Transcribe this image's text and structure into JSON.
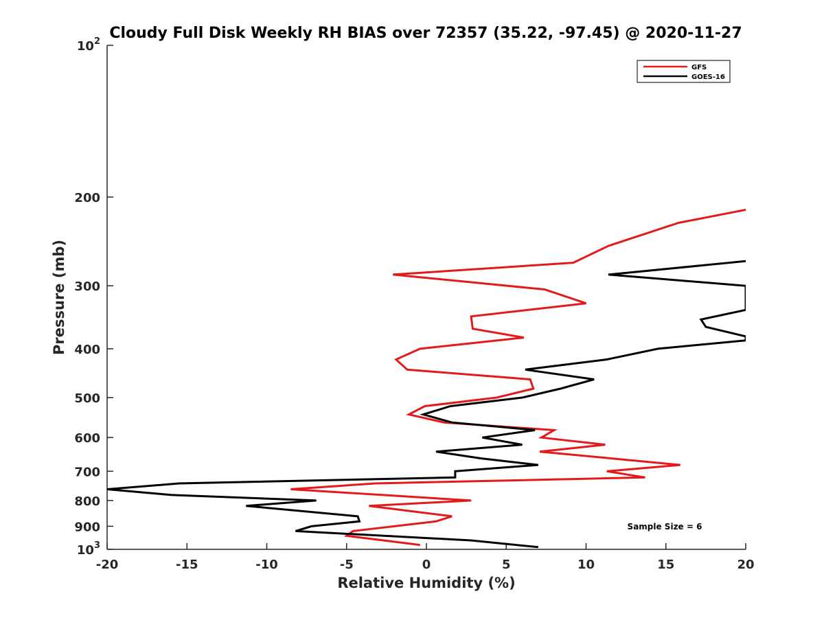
{
  "chart_data": {
    "type": "line",
    "title": "Cloudy Full Disk Weekly RH BIAS over 72357 (35.22, -97.45) @ 2020-11-27",
    "xlabel": "Relative Humidity (%)",
    "ylabel": "Pressure (mb)",
    "xlim": [
      -20,
      20
    ],
    "ylim": [
      100,
      1000
    ],
    "y_scale": "log",
    "y_reversed": true,
    "grid": false,
    "legend_position": "top-right",
    "x_ticks": [
      "-20",
      "-15",
      "-10",
      "-5",
      "0",
      "5",
      "10",
      "15",
      "20"
    ],
    "y_ticks": [
      {
        "base": "10",
        "exp": "2"
      },
      {
        "base": "200",
        "exp": ""
      },
      {
        "base": "300",
        "exp": ""
      },
      {
        "base": "400",
        "exp": ""
      },
      {
        "base": "500",
        "exp": ""
      },
      {
        "base": "600",
        "exp": ""
      },
      {
        "base": "700",
        "exp": ""
      },
      {
        "base": "800",
        "exp": ""
      },
      {
        "base": "900",
        "exp": ""
      },
      {
        "base": "10",
        "exp": "3"
      }
    ],
    "annotation": "Sample Size = 6",
    "series": [
      {
        "name": "GFS",
        "color": "#e31a1c",
        "points": [
          {
            "x": 20.0,
            "y": 212
          },
          {
            "x": 15.8,
            "y": 225
          },
          {
            "x": 11.4,
            "y": 250
          },
          {
            "x": 9.2,
            "y": 270
          },
          {
            "x": -2.1,
            "y": 285
          },
          {
            "x": 7.4,
            "y": 305
          },
          {
            "x": 10.0,
            "y": 325
          },
          {
            "x": 2.8,
            "y": 345
          },
          {
            "x": 2.9,
            "y": 365
          },
          {
            "x": 6.1,
            "y": 380
          },
          {
            "x": -0.4,
            "y": 400
          },
          {
            "x": -1.9,
            "y": 420
          },
          {
            "x": -1.2,
            "y": 440
          },
          {
            "x": 6.5,
            "y": 460
          },
          {
            "x": 6.7,
            "y": 480
          },
          {
            "x": 4.4,
            "y": 500
          },
          {
            "x": -0.1,
            "y": 520
          },
          {
            "x": -1.1,
            "y": 540
          },
          {
            "x": 1.1,
            "y": 560
          },
          {
            "x": 8.0,
            "y": 580
          },
          {
            "x": 7.2,
            "y": 600
          },
          {
            "x": 11.2,
            "y": 620
          },
          {
            "x": 7.1,
            "y": 640
          },
          {
            "x": 15.9,
            "y": 680
          },
          {
            "x": 11.3,
            "y": 700
          },
          {
            "x": 13.7,
            "y": 720
          },
          {
            "x": -3.2,
            "y": 740
          },
          {
            "x": -8.5,
            "y": 760
          },
          {
            "x": 2.8,
            "y": 800
          },
          {
            "x": -3.6,
            "y": 820
          },
          {
            "x": 1.6,
            "y": 860
          },
          {
            "x": 0.6,
            "y": 880
          },
          {
            "x": -4.6,
            "y": 920
          },
          {
            "x": -5.0,
            "y": 940
          },
          {
            "x": -0.4,
            "y": 980
          }
        ]
      },
      {
        "name": "GOES-16",
        "color": "#000000",
        "points": [
          {
            "x": 20.0,
            "y": 268
          },
          {
            "x": 11.4,
            "y": 285
          },
          {
            "x": 20.0,
            "y": 300
          },
          {
            "x": 20.0,
            "y": 335
          },
          {
            "x": 17.2,
            "y": 350
          },
          {
            "x": 17.5,
            "y": 362
          },
          {
            "x": 20.0,
            "y": 378
          },
          {
            "x": 20.0,
            "y": 385
          },
          {
            "x": 14.5,
            "y": 400
          },
          {
            "x": 11.3,
            "y": 420
          },
          {
            "x": 6.2,
            "y": 440
          },
          {
            "x": 10.5,
            "y": 460
          },
          {
            "x": 8.4,
            "y": 480
          },
          {
            "x": 6.0,
            "y": 500
          },
          {
            "x": 1.5,
            "y": 520
          },
          {
            "x": -0.2,
            "y": 540
          },
          {
            "x": 1.6,
            "y": 560
          },
          {
            "x": 6.8,
            "y": 580
          },
          {
            "x": 3.5,
            "y": 600
          },
          {
            "x": 6.0,
            "y": 620
          },
          {
            "x": 0.6,
            "y": 640
          },
          {
            "x": 3.4,
            "y": 660
          },
          {
            "x": 7.0,
            "y": 680
          },
          {
            "x": 1.8,
            "y": 700
          },
          {
            "x": 1.8,
            "y": 720
          },
          {
            "x": -15.5,
            "y": 740
          },
          {
            "x": -20.0,
            "y": 760
          },
          {
            "x": -16.0,
            "y": 780
          },
          {
            "x": -6.9,
            "y": 800
          },
          {
            "x": -11.3,
            "y": 820
          },
          {
            "x": -4.3,
            "y": 860
          },
          {
            "x": -4.2,
            "y": 880
          },
          {
            "x": -7.2,
            "y": 900
          },
          {
            "x": -8.2,
            "y": 920
          },
          {
            "x": 2.8,
            "y": 960
          },
          {
            "x": 7.0,
            "y": 990
          }
        ]
      }
    ]
  }
}
